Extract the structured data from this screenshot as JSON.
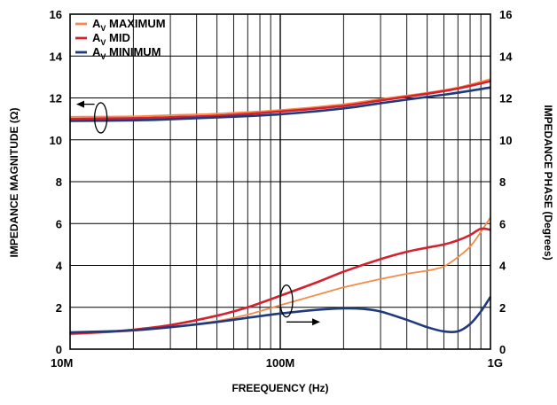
{
  "chart_data": {
    "type": "line",
    "xlabel": "FREEQUENCY (Hz)",
    "ylabel_left": "IMPEDANCE MAGNITUDE (Ω)",
    "ylabel_right": "IMPEDANCE PHASE (Degrees)",
    "x_scale": "log",
    "xlim": [
      10000000,
      1000000000
    ],
    "ylim_left": [
      0,
      16
    ],
    "ylim_right": [
      0,
      16
    ],
    "grid": true,
    "legend_position": "top-left",
    "x_ticks": [
      {
        "value": 10000000,
        "label": "10M"
      },
      {
        "value": 100000000,
        "label": "100M"
      },
      {
        "value": 1000000000,
        "label": "1G"
      }
    ],
    "y_ticks_left": [
      "0",
      "2",
      "4",
      "6",
      "8",
      "10",
      "12",
      "14",
      "16"
    ],
    "y_ticks_right": [
      "0",
      "2",
      "4",
      "6",
      "8",
      "10",
      "12",
      "14",
      "16"
    ],
    "series": [
      {
        "name": "AV MAXIMUM",
        "color": "#f58a4b",
        "group": "magnitude",
        "x": [
          10000000,
          20000000,
          30000000,
          50000000,
          100000000,
          200000000,
          300000000,
          500000000,
          700000000,
          1000000000
        ],
        "y": [
          11.1,
          11.12,
          11.18,
          11.25,
          11.42,
          11.7,
          11.95,
          12.25,
          12.5,
          12.9
        ]
      },
      {
        "name": "AV MID",
        "color": "#d5202e",
        "group": "magnitude",
        "x": [
          10000000,
          20000000,
          30000000,
          50000000,
          100000000,
          200000000,
          300000000,
          500000000,
          700000000,
          1000000000
        ],
        "y": [
          11.0,
          11.03,
          11.08,
          11.15,
          11.35,
          11.62,
          11.88,
          12.2,
          12.45,
          12.8
        ]
      },
      {
        "name": "AV MINIMUM",
        "color": "#1f3a7d",
        "group": "magnitude",
        "x": [
          10000000,
          20000000,
          30000000,
          50000000,
          100000000,
          200000000,
          300000000,
          500000000,
          700000000,
          1000000000
        ],
        "y": [
          10.9,
          10.93,
          10.98,
          11.07,
          11.22,
          11.5,
          11.75,
          12.05,
          12.25,
          12.5
        ]
      },
      {
        "name": "AV MAXIMUM",
        "color": "#f58a4b",
        "group": "phase",
        "x": [
          10000000,
          15000000,
          20000000,
          30000000,
          50000000,
          70000000,
          100000000,
          150000000,
          200000000,
          300000000,
          400000000,
          500000000,
          600000000,
          700000000,
          800000000,
          900000000,
          1000000000
        ],
        "y": [
          0.7,
          0.8,
          0.88,
          1.05,
          1.35,
          1.65,
          2.1,
          2.6,
          2.95,
          3.35,
          3.6,
          3.75,
          3.95,
          4.4,
          4.9,
          5.6,
          6.3
        ]
      },
      {
        "name": "AV MID",
        "color": "#d5202e",
        "group": "phase",
        "x": [
          10000000,
          15000000,
          20000000,
          30000000,
          50000000,
          70000000,
          100000000,
          150000000,
          200000000,
          300000000,
          400000000,
          500000000,
          600000000,
          700000000,
          800000000,
          900000000,
          1000000000
        ],
        "y": [
          0.75,
          0.83,
          0.93,
          1.15,
          1.6,
          2.0,
          2.55,
          3.2,
          3.7,
          4.3,
          4.65,
          4.85,
          5.0,
          5.2,
          5.45,
          5.75,
          5.7
        ]
      },
      {
        "name": "AV MINIMUM",
        "color": "#1f3a7d",
        "group": "phase",
        "x": [
          10000000,
          15000000,
          20000000,
          30000000,
          50000000,
          70000000,
          100000000,
          150000000,
          200000000,
          250000000,
          300000000,
          400000000,
          500000000,
          600000000,
          700000000,
          800000000,
          900000000,
          1000000000
        ],
        "y": [
          0.8,
          0.85,
          0.9,
          1.05,
          1.3,
          1.5,
          1.7,
          1.88,
          1.95,
          1.92,
          1.8,
          1.4,
          1.05,
          0.85,
          0.85,
          1.2,
          1.8,
          2.5
        ]
      }
    ],
    "legend": [
      {
        "main": "A",
        "sub": "V",
        "rest": " MAXIMUM",
        "color": "#f58a4b"
      },
      {
        "main": "A",
        "sub": "V",
        "rest": " MID",
        "color": "#d5202e"
      },
      {
        "main": "A",
        "sub": "V",
        "rest": " MINIMUM",
        "color": "#1f3a7d"
      }
    ]
  }
}
